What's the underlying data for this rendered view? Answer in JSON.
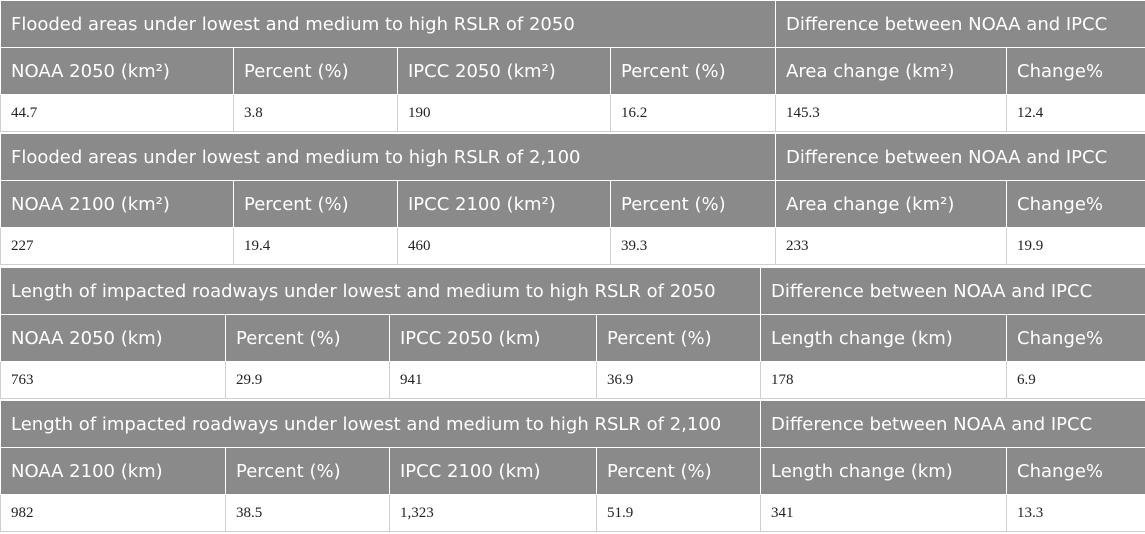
{
  "table": {
    "blocks": [
      {
        "title": "Flooded areas under lowest and medium to high RSLR of 2050",
        "difference": "Difference between NOAA and IPCC",
        "headers": [
          "NOAA 2050 (km²)",
          "Percent (%)",
          "IPCC 2050 (km²)",
          "Percent (%)",
          "Area change (km²)",
          "Change%"
        ],
        "values": [
          "44.7",
          "3.8",
          "190",
          "16.2",
          "145.3",
          "12.4"
        ]
      },
      {
        "title": "Flooded areas under lowest and medium to high RSLR of 2,100",
        "difference": "Difference between NOAA and IPCC",
        "headers": [
          "NOAA 2100 (km²)",
          "Percent (%)",
          "IPCC 2100 (km²)",
          "Percent (%)",
          "Area change (km²)",
          "Change%"
        ],
        "values": [
          "227",
          "19.4",
          "460",
          "39.3",
          "233",
          "19.9"
        ]
      },
      {
        "title": "Length of impacted roadways under lowest and medium to high RSLR of 2050",
        "difference": "Difference between NOAA and IPCC",
        "headers": [
          "NOAA 2050 (km)",
          "Percent (%)",
          "IPCC 2050 (km)",
          "Percent (%)",
          "Length change (km)",
          "Change%"
        ],
        "values": [
          "763",
          "29.9",
          "941",
          "36.9",
          "178",
          "6.9"
        ]
      },
      {
        "title": "Length of impacted roadways under lowest and medium to high RSLR of 2,100",
        "difference": "Difference between NOAA and IPCC",
        "headers": [
          "NOAA 2100 (km)",
          "Percent (%)",
          "IPCC 2100 (km)",
          "Percent (%)",
          "Length change (km)",
          "Change%"
        ],
        "values": [
          "982",
          "38.5",
          "1,323",
          "51.9",
          "341",
          "13.3"
        ]
      }
    ]
  }
}
